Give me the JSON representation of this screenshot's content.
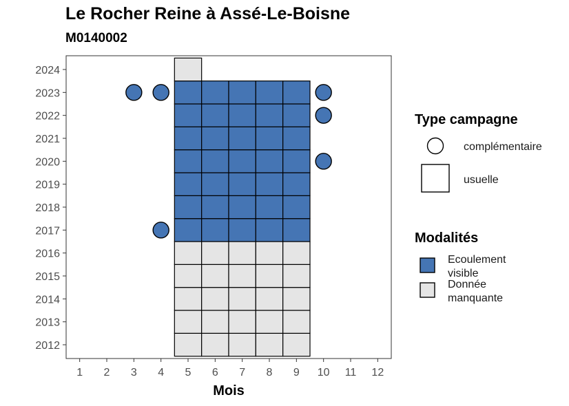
{
  "title": "Le Rocher Reine à Assé-Le-Boisne",
  "subtitle": "M0140002",
  "colors": {
    "ecoulement_visible": "#4575b4",
    "donnee_manquante": "#e5e5e5",
    "outline": "#000000",
    "panel_border": "#333333"
  },
  "chart_data": {
    "type": "heatmap",
    "title": "Le Rocher Reine à Assé-Le-Boisne",
    "subtitle": "M0140002",
    "xlabel": "Mois",
    "ylabel": "",
    "x_ticks": [
      1,
      2,
      3,
      4,
      5,
      6,
      7,
      8,
      9,
      10,
      11,
      12
    ],
    "y_ticks": [
      2012,
      2013,
      2014,
      2015,
      2016,
      2017,
      2018,
      2019,
      2020,
      2021,
      2022,
      2023,
      2024
    ],
    "xlim": [
      0.5,
      12.5
    ],
    "ylim": [
      2011.4,
      2024.6
    ],
    "grid": false,
    "legend_position": "right",
    "legends": [
      {
        "title": "Type campagne",
        "entries": [
          {
            "label": "complémentaire",
            "shape": "circle"
          },
          {
            "label": "usuelle",
            "shape": "square"
          }
        ]
      },
      {
        "title": "Modalités",
        "entries": [
          {
            "label": "Ecoulement visible",
            "lines": [
              "Ecoulement",
              "visible"
            ],
            "color": "#4575b4"
          },
          {
            "label": "Donnée manquante",
            "lines": [
              "Donnée",
              "manquante"
            ],
            "color": "#e5e5e5"
          }
        ]
      }
    ],
    "usuelle": [
      {
        "year": 2012,
        "months": [
          5,
          6,
          7,
          8,
          9
        ],
        "modalite": "Donnée manquante"
      },
      {
        "year": 2013,
        "months": [
          5,
          6,
          7,
          8,
          9
        ],
        "modalite": "Donnée manquante"
      },
      {
        "year": 2014,
        "months": [
          5,
          6,
          7,
          8,
          9
        ],
        "modalite": "Donnée manquante"
      },
      {
        "year": 2015,
        "months": [
          5,
          6,
          7,
          8,
          9
        ],
        "modalite": "Donnée manquante"
      },
      {
        "year": 2016,
        "months": [
          5,
          6,
          7,
          8,
          9
        ],
        "modalite": "Donnée manquante"
      },
      {
        "year": 2017,
        "months": [
          5,
          6,
          7,
          8,
          9
        ],
        "modalite": "Ecoulement visible"
      },
      {
        "year": 2018,
        "months": [
          5,
          6,
          7,
          8,
          9
        ],
        "modalite": "Ecoulement visible"
      },
      {
        "year": 2019,
        "months": [
          5,
          6,
          7,
          8,
          9
        ],
        "modalite": "Ecoulement visible"
      },
      {
        "year": 2020,
        "months": [
          5,
          6,
          7,
          8,
          9
        ],
        "modalite": "Ecoulement visible"
      },
      {
        "year": 2021,
        "months": [
          5,
          6,
          7,
          8,
          9
        ],
        "modalite": "Ecoulement visible"
      },
      {
        "year": 2022,
        "months": [
          5,
          6,
          7,
          8,
          9
        ],
        "modalite": "Ecoulement visible"
      },
      {
        "year": 2023,
        "months": [
          5,
          6,
          7,
          8,
          9
        ],
        "modalite": "Ecoulement visible"
      },
      {
        "year": 2024,
        "months": [
          5
        ],
        "modalite": "Donnée manquante"
      }
    ],
    "complementaire": [
      {
        "year": 2023,
        "month": 3,
        "modalite": "Ecoulement visible"
      },
      {
        "year": 2023,
        "month": 4,
        "modalite": "Ecoulement visible"
      },
      {
        "year": 2023,
        "month": 10,
        "modalite": "Ecoulement visible"
      },
      {
        "year": 2022,
        "month": 10,
        "modalite": "Ecoulement visible"
      },
      {
        "year": 2020,
        "month": 10,
        "modalite": "Ecoulement visible"
      },
      {
        "year": 2017,
        "month": 4,
        "modalite": "Ecoulement visible"
      }
    ]
  }
}
